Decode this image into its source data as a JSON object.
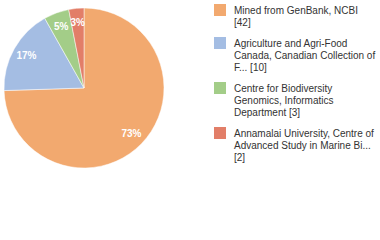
{
  "chart_data": {
    "type": "pie",
    "categories": [
      "Mined from GenBank, NCBI [42]",
      "Agriculture and Agri-Food Canada, Canadian Collection of F... [10]",
      "Centre for Biodiversity Genomics, Informatics Department [3]",
      "Annamalai University, Centre of Advanced Study in Marine Bi... [2]"
    ],
    "values": [
      73,
      17,
      5,
      3
    ],
    "value_labels": [
      "73%",
      "17%",
      "5%",
      "3%"
    ],
    "colors": [
      "#f2a96f",
      "#a4bde3",
      "#a3cd88",
      "#e27e68"
    ],
    "data_labels": true,
    "legend": "right"
  }
}
